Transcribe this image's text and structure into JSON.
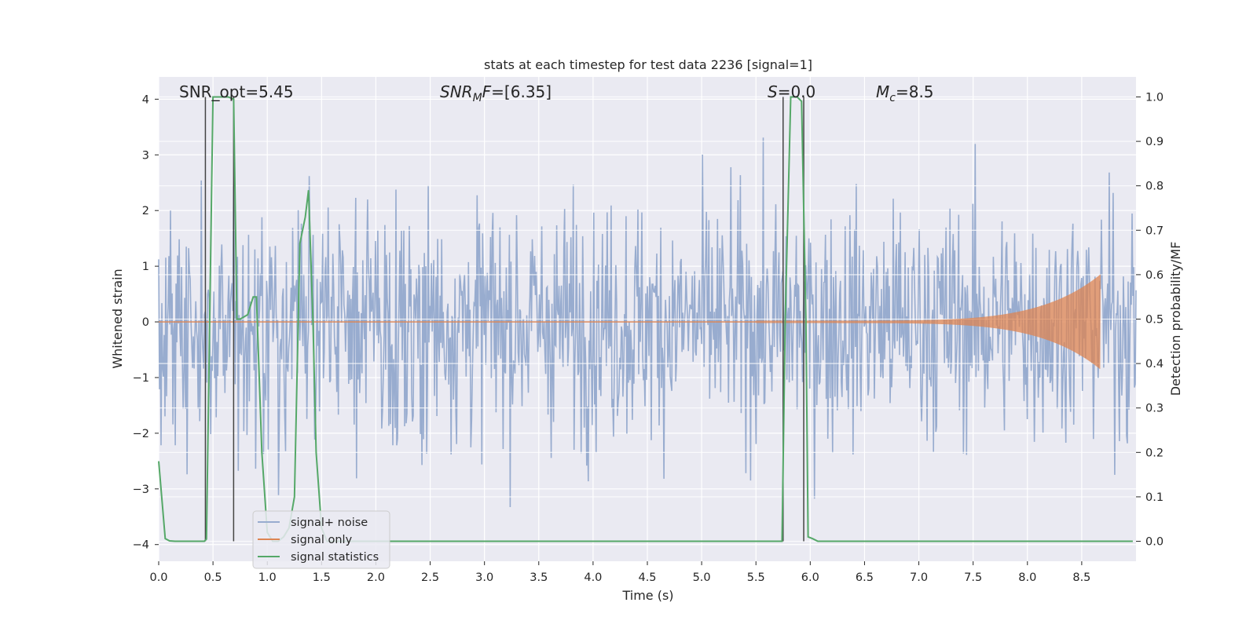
{
  "chart_data": {
    "type": "line",
    "title": "stats at each timestep for test data 2236 [signal=1]",
    "xlabel": "Time (s)",
    "ylabel": "Whitened strain",
    "y2label": "Detection probability/MF",
    "xlim": [
      0.0,
      9.0
    ],
    "ylim": [
      -4.3,
      4.4
    ],
    "y2lim": [
      -0.045,
      1.045
    ],
    "xticks": [
      0.0,
      0.5,
      1.0,
      1.5,
      2.0,
      2.5,
      3.0,
      3.5,
      4.0,
      4.5,
      5.0,
      5.5,
      6.0,
      6.5,
      7.0,
      7.5,
      8.0,
      8.5
    ],
    "xtick_labels": [
      "0.0",
      "0.5",
      "1.0",
      "1.5",
      "2.0",
      "2.5",
      "3.0",
      "3.5",
      "4.0",
      "4.5",
      "5.0",
      "5.5",
      "6.0",
      "6.5",
      "7.0",
      "7.5",
      "8.0",
      "8.5"
    ],
    "yticks": [
      -4,
      -3,
      -2,
      -1,
      0,
      1,
      2,
      3,
      4
    ],
    "ytick_labels": [
      "−4",
      "−3",
      "−2",
      "−1",
      "0",
      "1",
      "2",
      "3",
      "4"
    ],
    "y2ticks": [
      0.0,
      0.1,
      0.2,
      0.3,
      0.4,
      0.5,
      0.6,
      0.7,
      0.8,
      0.9,
      1.0
    ],
    "y2tick_labels": [
      "0.0",
      "0.1",
      "0.2",
      "0.3",
      "0.4",
      "0.5",
      "0.6",
      "0.7",
      "0.8",
      "0.9",
      "1.0"
    ],
    "grid": true,
    "legend_position": "lower-left",
    "annotations": [
      {
        "plain": "SNR_opt=5.45"
      },
      {
        "math": "SNR",
        "sub": "M",
        "rest": "F=[6.35]"
      },
      {
        "math": "S",
        "sub": "",
        "rest": "=0.0"
      },
      {
        "math": "M",
        "sub": "c",
        "rest": "=8.5"
      }
    ],
    "colors": {
      "noise": "#98accf",
      "signal": "#dd8452",
      "stats": "#55a868",
      "vline": "#444444",
      "background": "#eaeaf2",
      "grid": "#ffffff"
    },
    "series": [
      {
        "name": "signal+ noise",
        "kind": "noise",
        "axis": "left",
        "description_values": {
          "envelope_typical": 2.2,
          "peak_max": 4.0,
          "peak_min": -3.65
        }
      },
      {
        "name": "signal only",
        "kind": "chirp",
        "axis": "left",
        "x_start": 5.5,
        "x_end": 8.67,
        "amplitude_start": 0.02,
        "amplitude_end": 0.85
      },
      {
        "name": "signal statistics",
        "kind": "line",
        "axis": "right",
        "x": [
          0.0,
          0.06,
          0.1,
          0.15,
          0.25,
          0.35,
          0.42,
          0.44,
          0.5,
          0.57,
          0.64,
          0.69,
          0.72,
          0.75,
          0.82,
          0.87,
          0.9,
          0.95,
          1.0,
          1.05,
          1.1,
          1.15,
          1.2,
          1.25,
          1.3,
          1.35,
          1.38,
          1.42,
          1.45,
          1.5,
          1.55,
          5.0,
          5.74,
          5.77,
          5.82,
          5.88,
          5.92,
          5.96,
          5.98,
          6.02,
          6.07,
          8.97
        ],
        "y": [
          0.18,
          0.006,
          0.001,
          0.0,
          0.0,
          0.0,
          0.0,
          0.005,
          1.0,
          1.0,
          1.0,
          0.995,
          0.5,
          0.5,
          0.51,
          0.55,
          0.55,
          0.2,
          0.02,
          0.0,
          0.0,
          0.01,
          0.03,
          0.1,
          0.67,
          0.73,
          0.79,
          0.5,
          0.2,
          0.03,
          0.0,
          0.0,
          0.0,
          0.5,
          1.0,
          1.0,
          0.99,
          0.5,
          0.01,
          0.006,
          0.0,
          0.0
        ]
      }
    ],
    "vertical_lines": [
      {
        "x": 0.43,
        "y_from": 0.0,
        "y_to": 1.0
      },
      {
        "x": 0.69,
        "y_from": 0.0,
        "y_to": 1.0
      },
      {
        "x": 5.75,
        "y_from": 0.0,
        "y_to": 1.0
      },
      {
        "x": 5.94,
        "y_from": 0.0,
        "y_to": 1.0
      }
    ],
    "legend": [
      {
        "label": "signal+ noise",
        "color_key": "noise"
      },
      {
        "label": "signal only",
        "color_key": "signal"
      },
      {
        "label": "signal statistics",
        "color_key": "stats"
      }
    ]
  }
}
